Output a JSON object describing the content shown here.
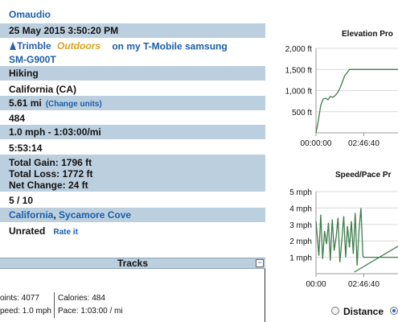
{
  "info": {
    "owner": "Omaudio",
    "date": "25 May 2015 3:50:20 PM",
    "device_brand": "Trimble",
    "device_brand_script": "Outdoors",
    "device_text": "on my T-Mobile samsung",
    "device_model": "SM-G900T",
    "activity": "Hiking",
    "region": "California (CA)",
    "distance": "5.61 mi",
    "change_units": "(Change units)",
    "points_value": "484",
    "speed_pace": "1.0 mph - 1:03:00/mi",
    "duration": "5:53:14",
    "total_gain": "Total Gain: 1796 ft",
    "total_loss": "Total Loss: 1772 ft",
    "net_change": "Net Change: 24 ft",
    "rating_score": "5 / 10",
    "location_state": "California",
    "location_sep": ", ",
    "location_place": "Sycamore Cove",
    "rated": "Unrated",
    "rate_it": "Rate it"
  },
  "tracks": {
    "title": "Tracks",
    "collapse": "−",
    "points": "oints: 4077",
    "calories": "Calories: 484",
    "speed": "peed: 1.0 mph",
    "pace": "Pace: 1:03:00 / mi"
  },
  "charts": {
    "radio_distance": "Distance",
    "colors": {
      "line": "#3e7d4c",
      "grid": "#d9d9d9",
      "axis": "#999999"
    }
  },
  "chart_data": [
    {
      "type": "line",
      "title": "Elevation Pro",
      "ylabel": "",
      "xlabel": "",
      "ylim": [
        0,
        2000
      ],
      "yticks": [
        "2,000 ft",
        "1,500 ft",
        "1,000 ft",
        "500 ft"
      ],
      "ytick_values": [
        2000,
        1500,
        1000,
        500
      ],
      "xticks": [
        "00:00:00",
        "02:46:40"
      ],
      "xtick_values": [
        0,
        10000
      ],
      "xlim": [
        0,
        18500
      ],
      "series": [
        {
          "x": [
            0,
            500,
            1000,
            1500,
            2000,
            2500,
            3000,
            3500,
            4000,
            4500,
            5000,
            5500,
            6000,
            6500,
            7000,
            8500,
            10000,
            12000,
            14000,
            16000,
            18500
          ],
          "y": [
            0,
            300,
            650,
            800,
            820,
            780,
            860,
            840,
            880,
            950,
            1050,
            1200,
            1350,
            1420,
            1500,
            1500,
            1500,
            1500,
            1500,
            1500,
            1500
          ]
        }
      ]
    },
    {
      "type": "line",
      "title": "Speed/Pace Pr",
      "ylabel": "",
      "xlabel": "",
      "ylim": [
        0,
        5
      ],
      "yticks": [
        "5 mph",
        "4 mph",
        "3 mph",
        "2 mph",
        "1 mph"
      ],
      "ytick_values": [
        5,
        4,
        3,
        2,
        1
      ],
      "xticks": [
        "00:00",
        "02:46:40"
      ],
      "xtick_values": [
        0,
        10000
      ],
      "xlim": [
        0,
        18500
      ],
      "series": [
        {
          "x": [
            0,
            600,
            1000,
            1400,
            1800,
            2200,
            2600,
            3000,
            3400,
            3800,
            4200,
            4600,
            5000,
            5400,
            5800,
            6200,
            6600,
            7000,
            7400,
            7800,
            8200,
            8600,
            9000,
            9400,
            9800,
            10000,
            12000,
            14000,
            16000,
            18500
          ],
          "y": [
            3.2,
            1.1,
            3.6,
            0.9,
            2.6,
            1.8,
            3.1,
            0.8,
            3.3,
            1.4,
            2.2,
            3.4,
            0.7,
            2.0,
            3.5,
            1.0,
            2.9,
            1.6,
            3.2,
            1.2,
            3.7,
            0.5,
            2.6,
            4.0,
            1.1,
            1.0,
            1.0,
            1.0,
            1.0,
            1.0
          ]
        },
        {
          "x": [
            8000,
            18500
          ],
          "y": [
            0.1,
            1.9
          ]
        }
      ]
    }
  ]
}
